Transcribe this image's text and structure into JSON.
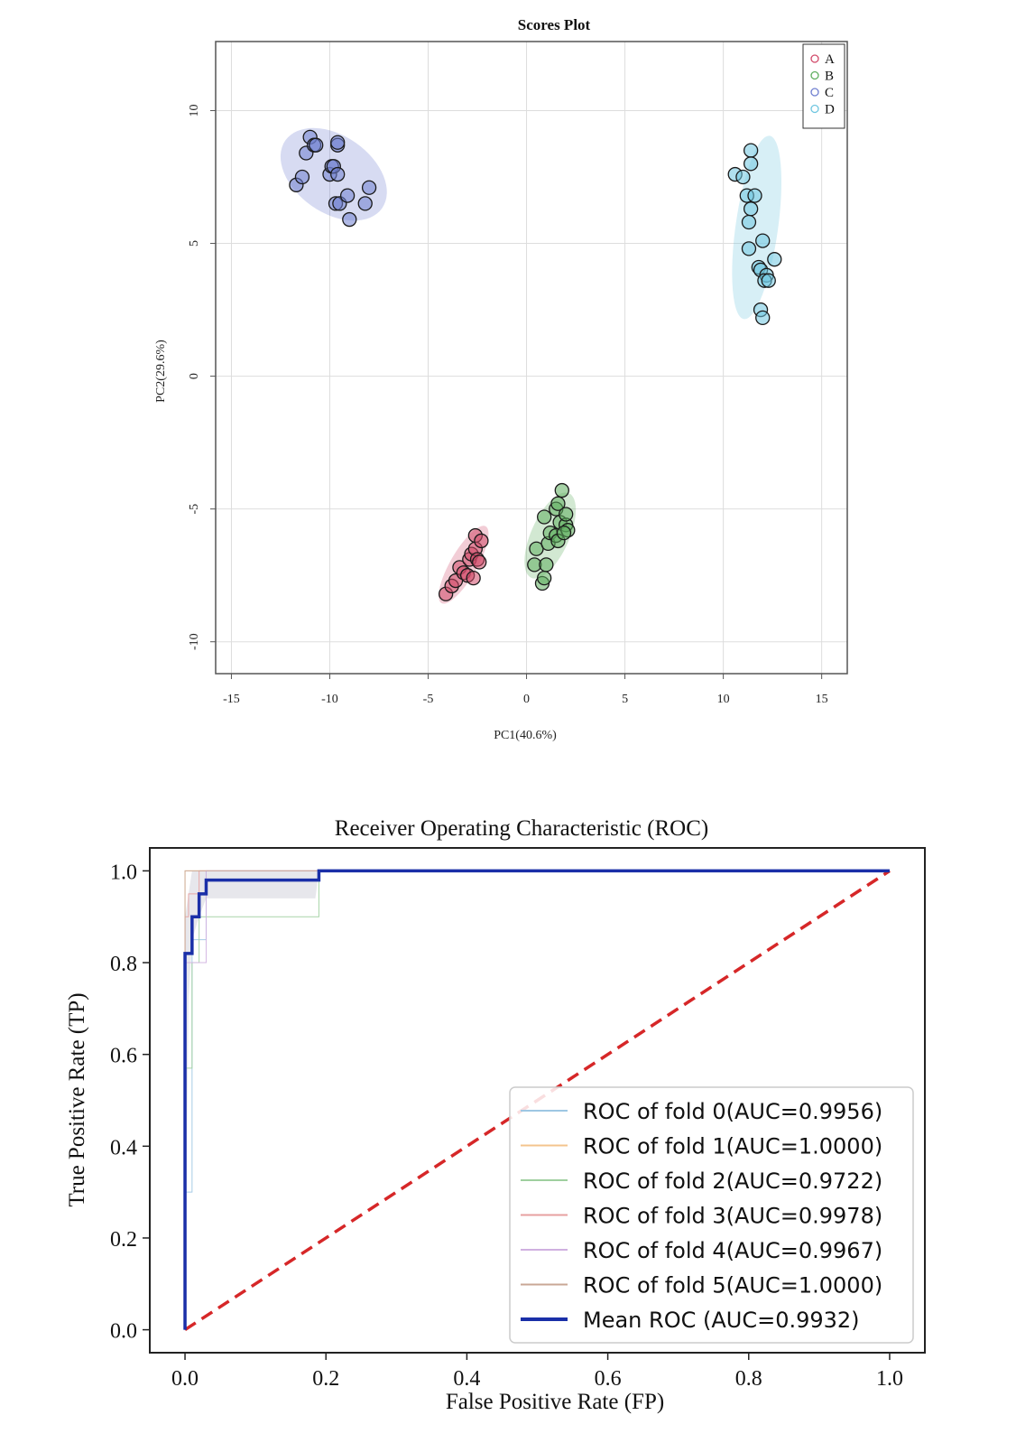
{
  "chart_data": [
    {
      "type": "scatter",
      "title": "Scores Plot",
      "xlabel": "PC1(40.6%)",
      "ylabel": "PC2(29.6%)",
      "xlim": [
        -15.8,
        16.3
      ],
      "ylim": [
        -11.2,
        12.6
      ],
      "xticks": [
        -15,
        -10,
        -5,
        0,
        5,
        10,
        15
      ],
      "yticks": [
        -10,
        -5,
        0,
        5,
        10
      ],
      "grid": true,
      "legend_position": "top-right",
      "series": [
        {
          "name": "A",
          "color": "#d24a6a",
          "ellipse": {
            "cx": -3.2,
            "cy": -7.1,
            "rx": 2.25,
            "ry": 0.5,
            "angle_deg": 60
          },
          "points": [
            [
              -4.1,
              -8.2
            ],
            [
              -3.8,
              -7.9
            ],
            [
              -3.6,
              -7.7
            ],
            [
              -3.4,
              -7.2
            ],
            [
              -3.2,
              -7.4
            ],
            [
              -3.0,
              -7.5
            ],
            [
              -2.9,
              -6.9
            ],
            [
              -2.7,
              -7.6
            ],
            [
              -2.8,
              -6.7
            ],
            [
              -2.6,
              -6.5
            ],
            [
              -2.5,
              -6.9
            ],
            [
              -2.6,
              -6.0
            ],
            [
              -2.3,
              -6.2
            ],
            [
              -2.4,
              -7.0
            ]
          ]
        },
        {
          "name": "B",
          "color": "#5fae5f",
          "ellipse": {
            "cx": 1.2,
            "cy": -6.0,
            "rx": 2.35,
            "ry": 0.72,
            "angle_deg": 66
          },
          "points": [
            [
              0.4,
              -7.1
            ],
            [
              0.5,
              -6.5
            ],
            [
              0.8,
              -7.8
            ],
            [
              0.9,
              -7.6
            ],
            [
              0.9,
              -5.3
            ],
            [
              1.0,
              -7.1
            ],
            [
              1.1,
              -6.3
            ],
            [
              1.2,
              -5.9
            ],
            [
              1.5,
              -6.0
            ],
            [
              1.5,
              -5.0
            ],
            [
              1.6,
              -4.8
            ],
            [
              1.6,
              -6.2
            ],
            [
              1.7,
              -5.5
            ],
            [
              1.8,
              -4.3
            ],
            [
              2.0,
              -5.6
            ],
            [
              2.0,
              -5.2
            ],
            [
              2.1,
              -5.8
            ],
            [
              1.9,
              -5.9
            ]
          ]
        },
        {
          "name": "C",
          "color": "#6f7fd0",
          "ellipse": {
            "cx": -9.8,
            "cy": 7.6,
            "rx": 3.0,
            "ry": 1.45,
            "angle_deg": -35
          },
          "points": [
            [
              -11.7,
              7.2
            ],
            [
              -11.4,
              7.5
            ],
            [
              -11.2,
              8.4
            ],
            [
              -11.0,
              9.0
            ],
            [
              -10.8,
              8.7
            ],
            [
              -10.7,
              8.7
            ],
            [
              -10.0,
              7.6
            ],
            [
              -9.9,
              7.9
            ],
            [
              -9.8,
              7.9
            ],
            [
              -9.6,
              7.6
            ],
            [
              -9.7,
              6.5
            ],
            [
              -9.6,
              8.7
            ],
            [
              -9.5,
              6.5
            ],
            [
              -9.6,
              8.8
            ],
            [
              -9.1,
              6.8
            ],
            [
              -9.0,
              5.9
            ],
            [
              -8.2,
              6.5
            ],
            [
              -8.0,
              7.1
            ]
          ]
        },
        {
          "name": "D",
          "color": "#6fc6e0",
          "ellipse": {
            "cx": 11.7,
            "cy": 5.6,
            "rx": 4.7,
            "ry": 0.8,
            "angle_deg": 82
          },
          "points": [
            [
              10.6,
              7.6
            ],
            [
              11.0,
              7.5
            ],
            [
              11.2,
              6.8
            ],
            [
              11.6,
              6.8
            ],
            [
              11.4,
              8.5
            ],
            [
              11.4,
              8.0
            ],
            [
              11.4,
              6.3
            ],
            [
              11.3,
              5.8
            ],
            [
              11.3,
              4.8
            ],
            [
              11.8,
              4.1
            ],
            [
              11.9,
              4.0
            ],
            [
              12.0,
              5.1
            ],
            [
              12.2,
              3.8
            ],
            [
              12.1,
              3.6
            ],
            [
              12.3,
              3.6
            ],
            [
              12.6,
              4.4
            ],
            [
              11.9,
              2.5
            ],
            [
              12.0,
              2.2
            ]
          ]
        }
      ]
    },
    {
      "type": "line",
      "title": "Receiver Operating Characteristic (ROC)",
      "xlabel": "False Positive Rate (FP)",
      "ylabel": "True Positive Rate (TP)",
      "xlim": [
        -0.05,
        1.05
      ],
      "ylim": [
        -0.05,
        1.05
      ],
      "xticks": [
        "0.0",
        "0.2",
        "0.4",
        "0.6",
        "0.8",
        "1.0"
      ],
      "yticks": [
        "0.0",
        "0.2",
        "0.4",
        "0.6",
        "0.8",
        "1.0"
      ],
      "grid": false,
      "legend_position": "lower-right",
      "chance_line": {
        "x": [
          0,
          1
        ],
        "y": [
          0,
          1
        ],
        "color": "#d62728",
        "style": "dashed"
      },
      "std_band": {
        "color": "#9090a8",
        "x": [
          0.0,
          0.005,
          0.01,
          0.02,
          0.03,
          0.185,
          0.19,
          1.0
        ],
        "upper": [
          0.9,
          0.95,
          1.0,
          1.0,
          1.0,
          1.0,
          1.0,
          1.0
        ],
        "lower": [
          0.0,
          0.72,
          0.85,
          0.9,
          0.94,
          0.94,
          1.0,
          1.0
        ]
      },
      "series": [
        {
          "name": "ROC of fold 0(AUC=0.9956)",
          "color": "#9ec7e3",
          "width": 1,
          "x": [
            0,
            0,
            0.01,
            0.01,
            0.03,
            0.03,
            1
          ],
          "y": [
            0,
            0.3,
            0.3,
            0.85,
            0.85,
            1.0,
            1.0
          ]
        },
        {
          "name": "ROC of fold 1(AUC=1.0000)",
          "color": "#f4c48d",
          "width": 1,
          "x": [
            0,
            0,
            1
          ],
          "y": [
            0,
            1.0,
            1.0
          ]
        },
        {
          "name": "ROC of fold 2(AUC=0.9722)",
          "color": "#9fcf9f",
          "width": 1,
          "x": [
            0,
            0,
            0.01,
            0.01,
            0.02,
            0.02,
            0.19,
            0.19,
            1
          ],
          "y": [
            0,
            0.57,
            0.57,
            0.8,
            0.8,
            0.9,
            0.9,
            1.0,
            1.0
          ]
        },
        {
          "name": "ROC of fold 3(AUC=0.9978)",
          "color": "#e7a0a0",
          "width": 1,
          "x": [
            0,
            0,
            0.005,
            0.005,
            0.02,
            0.02,
            1
          ],
          "y": [
            0,
            0.9,
            0.9,
            0.95,
            0.95,
            1.0,
            1.0
          ]
        },
        {
          "name": "ROC of fold 4(AUC=0.9967)",
          "color": "#d0b0e0",
          "width": 1,
          "x": [
            0,
            0,
            0.03,
            0.03,
            1
          ],
          "y": [
            0,
            0.8,
            0.8,
            1.0,
            1.0
          ]
        },
        {
          "name": "ROC of fold 5(AUC=1.0000)",
          "color": "#c9a796",
          "width": 1,
          "x": [
            0,
            0,
            1
          ],
          "y": [
            0,
            1.0,
            1.0
          ]
        },
        {
          "name": "Mean ROC (AUC=0.9932)",
          "color": "#1a2fa8",
          "width": 3.5,
          "x": [
            0,
            0,
            0.01,
            0.01,
            0.02,
            0.02,
            0.03,
            0.03,
            0.19,
            0.19,
            1.0
          ],
          "y": [
            0,
            0.82,
            0.82,
            0.9,
            0.9,
            0.95,
            0.95,
            0.98,
            0.98,
            1.0,
            1.0
          ]
        }
      ]
    }
  ]
}
